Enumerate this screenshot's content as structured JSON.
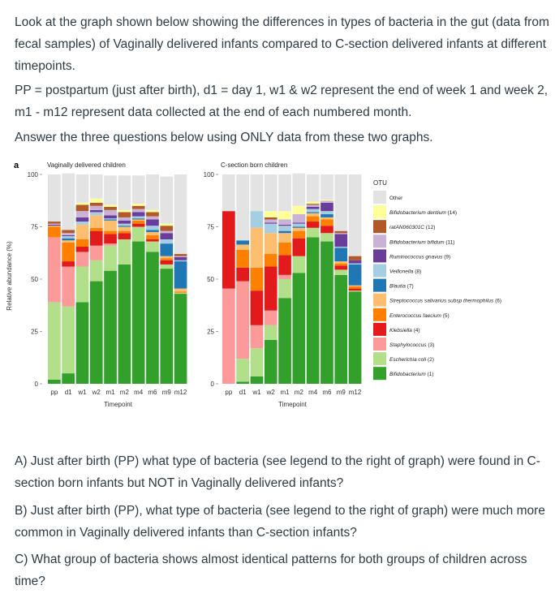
{
  "intro": {
    "p1": "Look at the graph shown below showing the differences in types of bacteria in the gut (data from fecal samples) of Vaginally delivered infants compared to C-section delivered infants at different timepoints.",
    "p2": "PP = postpartum (just after birth), d1 = day 1, w1 & w2 represent the end of week 1 and week 2, m1 - m12 represent data collected at the end of each numbered month.",
    "p3": "Answer the three questions below using ONLY data from these two graphs."
  },
  "questions": {
    "a": "A) Just after birth (PP) what type of bacteria (see legend to the right of graph) were found in C-section born infants but NOT in Vaginally delivered infants?",
    "b": "B) Just after birth (PP), what type of bacteria (see legend to the right of graph) were much more common in Vaginally delivered infants than C-section infants?",
    "c": "C) What group of bacteria shows almost identical patterns for both groups of children across time?"
  },
  "chart_data": {
    "panel_label": "a",
    "type": "bar",
    "stacked": true,
    "categories": [
      "pp",
      "d1",
      "w1",
      "w2",
      "m1",
      "m2",
      "m4",
      "m6",
      "m9",
      "m12"
    ],
    "ylabel": "Relative abundance (%)",
    "xlabel": "Timepoint",
    "ylim": [
      0,
      100
    ],
    "yticks": [
      0,
      25,
      50,
      75,
      100
    ],
    "legend": {
      "title": "OTU",
      "position": "right",
      "entries": [
        {
          "key": "other",
          "name": "Other",
          "italic": false,
          "color": "#e3e3e3"
        },
        {
          "key": "bden",
          "name": "Bifidobacterium dentium",
          "suffix": " (14)",
          "italic": true,
          "color": "#ffff99"
        },
        {
          "key": "rat",
          "name": "ratAN060301C",
          "suffix": " (12)",
          "italic": true,
          "color": "#b15928"
        },
        {
          "key": "bbif",
          "name": "Bifidobacterium bifidum",
          "suffix": " (11)",
          "italic": true,
          "color": "#cab2d6"
        },
        {
          "key": "rgna",
          "name": "Ruminococcus gnavus",
          "suffix": " (9)",
          "italic": true,
          "color": "#6a3d9a"
        },
        {
          "key": "veil",
          "name": "Veillonella",
          "suffix": " (8)",
          "italic": true,
          "color": "#a6cee3"
        },
        {
          "key": "blau",
          "name": "Blautia",
          "suffix": " (7)",
          "italic": true,
          "color": "#1f78b4"
        },
        {
          "key": "strep",
          "name": "Streptococcus salivarius subsp thermophilus",
          "suffix": " (6)",
          "italic": true,
          "color": "#fdbf6f"
        },
        {
          "key": "ente",
          "name": "Enterococcus faecium",
          "suffix": " (5)",
          "italic": true,
          "color": "#ff7f00"
        },
        {
          "key": "kleb",
          "name": "Klebsiella",
          "suffix": " (4)",
          "italic": true,
          "color": "#e31a1c"
        },
        {
          "key": "staph",
          "name": "Staphylococcus",
          "suffix": " (3)",
          "italic": true,
          "color": "#fb9a99"
        },
        {
          "key": "ecoli",
          "name": "Escherichia coli",
          "suffix": " (2)",
          "italic": true,
          "color": "#b2df8a"
        },
        {
          "key": "bifi",
          "name": "Bifidobacterium",
          "suffix": " (1)",
          "italic": true,
          "color": "#33a02c"
        }
      ]
    },
    "stack_order_bottom_to_top": [
      "bifi",
      "ecoli",
      "staph",
      "kleb",
      "ente",
      "strep",
      "blau",
      "veil",
      "rgna",
      "bbif",
      "rat",
      "bden",
      "other"
    ],
    "panels": [
      {
        "title": "Vaginally delivered children",
        "series": {
          "bifi": [
            2,
            5,
            39,
            49,
            54,
            57,
            68,
            63,
            55,
            43
          ],
          "ecoli": [
            37,
            32,
            17,
            10,
            12,
            12,
            7,
            5,
            2,
            0.5
          ],
          "staph": [
            31,
            19,
            7,
            7,
            1,
            0,
            0,
            0,
            0,
            0
          ],
          "kleb": [
            0,
            2.5,
            2.5,
            7,
            4.5,
            3,
            1.5,
            1,
            2,
            0
          ],
          "ente": [
            5,
            9,
            3.5,
            1.5,
            1.5,
            1,
            1.5,
            2,
            1,
            0.5
          ],
          "strep": [
            0.5,
            1,
            7,
            6,
            5,
            2,
            0.5,
            1.5,
            1,
            1.5
          ],
          "blau": [
            0,
            1,
            0,
            0,
            0.5,
            0.5,
            0.5,
            1,
            6,
            13
          ],
          "veil": [
            0,
            1,
            1.5,
            1.5,
            0.5,
            1,
            1,
            2,
            2,
            0.5
          ],
          "rgna": [
            0.5,
            0.5,
            2,
            1,
            1.5,
            1.5,
            2,
            3,
            3,
            1.5
          ],
          "bbif": [
            0.5,
            1,
            3,
            2,
            2.5,
            1.5,
            1.5,
            1.5,
            1,
            0.5
          ],
          "rat": [
            1,
            1.5,
            3,
            1.5,
            1.5,
            2.5,
            1.5,
            2,
            2.5,
            1
          ],
          "bden": [
            0,
            0,
            1,
            2,
            1,
            1,
            1,
            1,
            1,
            0
          ],
          "other": [
            22.5,
            27,
            13.5,
            11.5,
            14,
            16.5,
            13.5,
            17,
            22.5,
            38
          ]
        }
      },
      {
        "title": "C-section born children",
        "series": {
          "bifi": [
            0,
            1,
            3.5,
            21,
            41,
            53,
            70,
            68,
            52,
            44
          ],
          "ecoli": [
            0,
            11,
            13.5,
            7,
            9,
            8,
            4.5,
            4,
            2.5,
            0.5
          ],
          "staph": [
            45.5,
            37,
            11,
            7,
            2,
            0,
            0,
            0,
            0,
            0
          ],
          "kleb": [
            37,
            6.5,
            16.5,
            21,
            9.5,
            8.5,
            3,
            3.5,
            2,
            1
          ],
          "ente": [
            0,
            8.5,
            11,
            6,
            6,
            3.5,
            2.5,
            3,
            1,
            1
          ],
          "strep": [
            0,
            2.5,
            19,
            10,
            4.5,
            1.5,
            1.5,
            1,
            1,
            0.5
          ],
          "blau": [
            0,
            2,
            0,
            0,
            1,
            0.5,
            0.5,
            1.5,
            6.5,
            10
          ],
          "veil": [
            0,
            0,
            8,
            4.5,
            2.5,
            1.5,
            1.5,
            1.5,
            0.5,
            0.5
          ],
          "rgna": [
            0,
            0,
            0,
            0.5,
            0.5,
            0.5,
            1,
            4,
            6,
            1.5
          ],
          "bbif": [
            0,
            0,
            0,
            1.5,
            2.5,
            4,
            1,
            1,
            0.5,
            0
          ],
          "rat": [
            0,
            0,
            0,
            1,
            0,
            0,
            0.5,
            0,
            1,
            2
          ],
          "bden": [
            0,
            0,
            0,
            3,
            4,
            4,
            1,
            0.5,
            0,
            0
          ],
          "other": [
            17.5,
            31.5,
            17.5,
            17.5,
            17.5,
            15.5,
            13,
            12,
            27,
            39
          ]
        }
      }
    ]
  }
}
